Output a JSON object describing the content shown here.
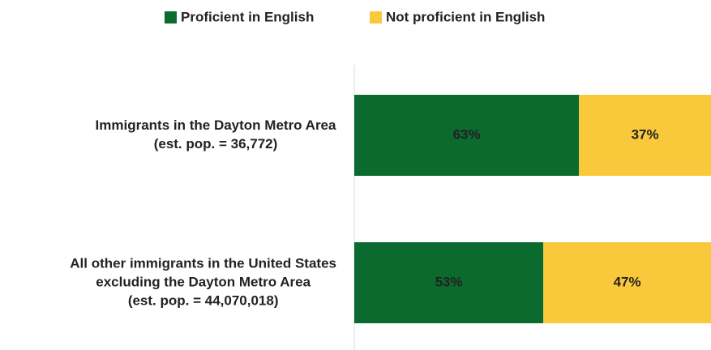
{
  "chart_data": {
    "type": "stacked-barh",
    "categories": [
      [
        "Immigrants in the Dayton Metro Area",
        "(est. pop. = 36,772)"
      ],
      [
        "All other immigrants in the United States",
        "excluding the Dayton Metro Area",
        "(est. pop. = 44,070,018)"
      ]
    ],
    "series": [
      {
        "name": "Proficient in English",
        "color": "#0b6a2d",
        "label_color": "#ffffff",
        "values": [
          63,
          53
        ],
        "value_labels": [
          "63%",
          "53%"
        ]
      },
      {
        "name": "Not proficient in English",
        "color": "#f9c93b",
        "label_color": "#222222",
        "values": [
          37,
          47
        ],
        "value_labels": [
          "37%",
          "47%"
        ]
      }
    ],
    "xlim": [
      0,
      100
    ]
  }
}
